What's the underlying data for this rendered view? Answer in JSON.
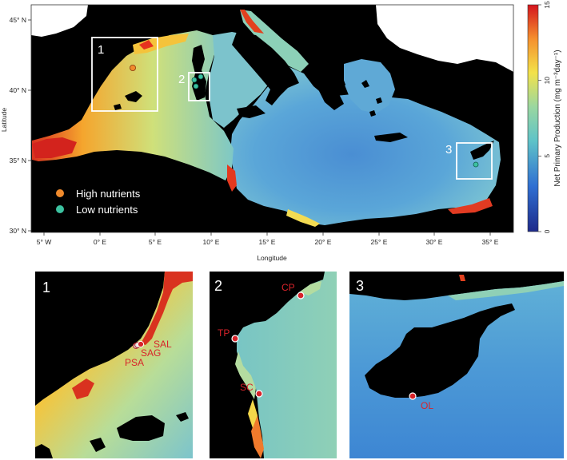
{
  "main_map": {
    "ylabel": "Latitude",
    "xlabel": "Longitude",
    "lat_ticks": [
      "45° N",
      "40° N",
      "35° N",
      "30° N"
    ],
    "lon_ticks": [
      "5° W",
      "0° E",
      "5° E",
      "10° E",
      "15° E",
      "20° E",
      "25° E",
      "30° E",
      "35° E"
    ],
    "boxes": [
      {
        "label": "1"
      },
      {
        "label": "2"
      },
      {
        "label": "3"
      }
    ],
    "legend": {
      "high": "High nutrients",
      "low": "Low nutrients",
      "high_color": "#f08a2c",
      "low_color": "#3cc2a0"
    }
  },
  "colorbar": {
    "title": "Net Primary Production (mg m⁻³day⁻¹)",
    "ticks": [
      "15",
      "10",
      "5",
      "0"
    ],
    "range": [
      0,
      15
    ]
  },
  "insets": [
    {
      "label": "1",
      "sites": [
        "SAL",
        "SAG",
        "PSA"
      ]
    },
    {
      "label": "2",
      "sites": [
        "CP",
        "TP",
        "SC"
      ]
    },
    {
      "label": "3",
      "sites": [
        "OL"
      ]
    }
  ],
  "colors": {
    "land": "#000000",
    "offshore": "#4f97d6",
    "coastal_high": "#e0321f",
    "coastal_mid": "#f5d23a",
    "site_marker": "#d8232a",
    "box": "#ffffff"
  }
}
